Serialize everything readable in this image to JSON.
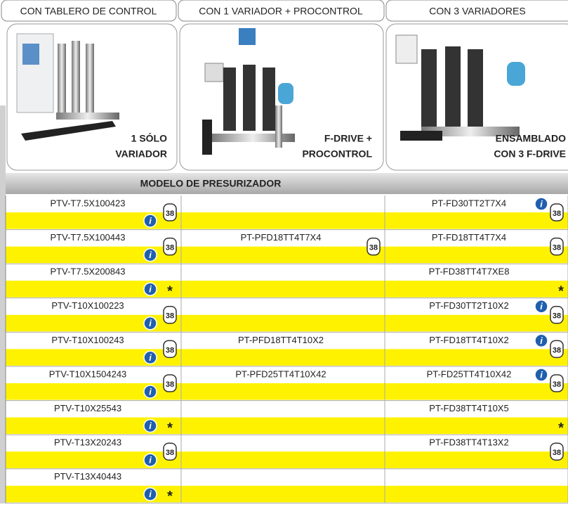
{
  "headers": [
    "CON  TABLERO DE CONTROL",
    "CON 1 VARIADOR + PROCONTROL",
    "CON 3 VARIADORES"
  ],
  "products": [
    {
      "caption": [
        "1 SÓLO",
        "VARIADOR"
      ]
    },
    {
      "caption": [
        "F-DRIVE +",
        "PROCONTROL"
      ]
    },
    {
      "caption": [
        "ENSAMBLADO",
        "CON 3 F-DRIVE"
      ]
    }
  ],
  "table": {
    "title": "MODELO DE PRESURIZADOR",
    "rows": [
      [
        {
          "model": "PTV-T7.5X100423",
          "info": true,
          "badge": "38"
        },
        null,
        {
          "model": "PT-FD30TT2T7X4",
          "info": true,
          "badge": "38"
        }
      ],
      [
        {
          "model": "PTV-T7.5X100443",
          "info": true,
          "badge": "38"
        },
        {
          "model": "PT-PFD18TT4T7X4",
          "badge": "38"
        },
        {
          "model": "PT-FD18TT4T7X4",
          "badge": "38"
        }
      ],
      [
        {
          "model": "PTV-T7.5X200843",
          "info": true,
          "note": "*"
        },
        null,
        {
          "model": "PT-FD38TT4T7XE8",
          "note": "*"
        }
      ],
      [
        {
          "model": "PTV-T10X100223",
          "info": true,
          "badge": "38"
        },
        null,
        {
          "model": "PT-FD30TT2T10X2",
          "info": true,
          "badge": "38"
        }
      ],
      [
        {
          "model": "PTV-T10X100243",
          "info": true,
          "badge": "38"
        },
        {
          "model": "PT-PFD18TT4T10X2"
        },
        {
          "model": "PT-FD18TT4T10X2",
          "info": true,
          "badge": "38"
        }
      ],
      [
        {
          "model": "PTV-T10X1504243",
          "info": true,
          "badge": "38"
        },
        {
          "model": "PT-PFD25TT4T10X42"
        },
        {
          "model": "PT-FD25TT4T10X42",
          "info": true,
          "badge": "38"
        }
      ],
      [
        {
          "model": "PTV-T10X25543",
          "info": true,
          "note": "*"
        },
        null,
        {
          "model": "PT-FD38TT4T10X5",
          "note": "*"
        }
      ],
      [
        {
          "model": "PTV-T13X20243",
          "info": true,
          "badge": "38"
        },
        null,
        {
          "model": "PT-FD38TT4T13X2",
          "badge": "38"
        }
      ],
      [
        {
          "model": "PTV-T13X40443",
          "info": true,
          "note": "*"
        },
        null,
        null
      ]
    ]
  }
}
